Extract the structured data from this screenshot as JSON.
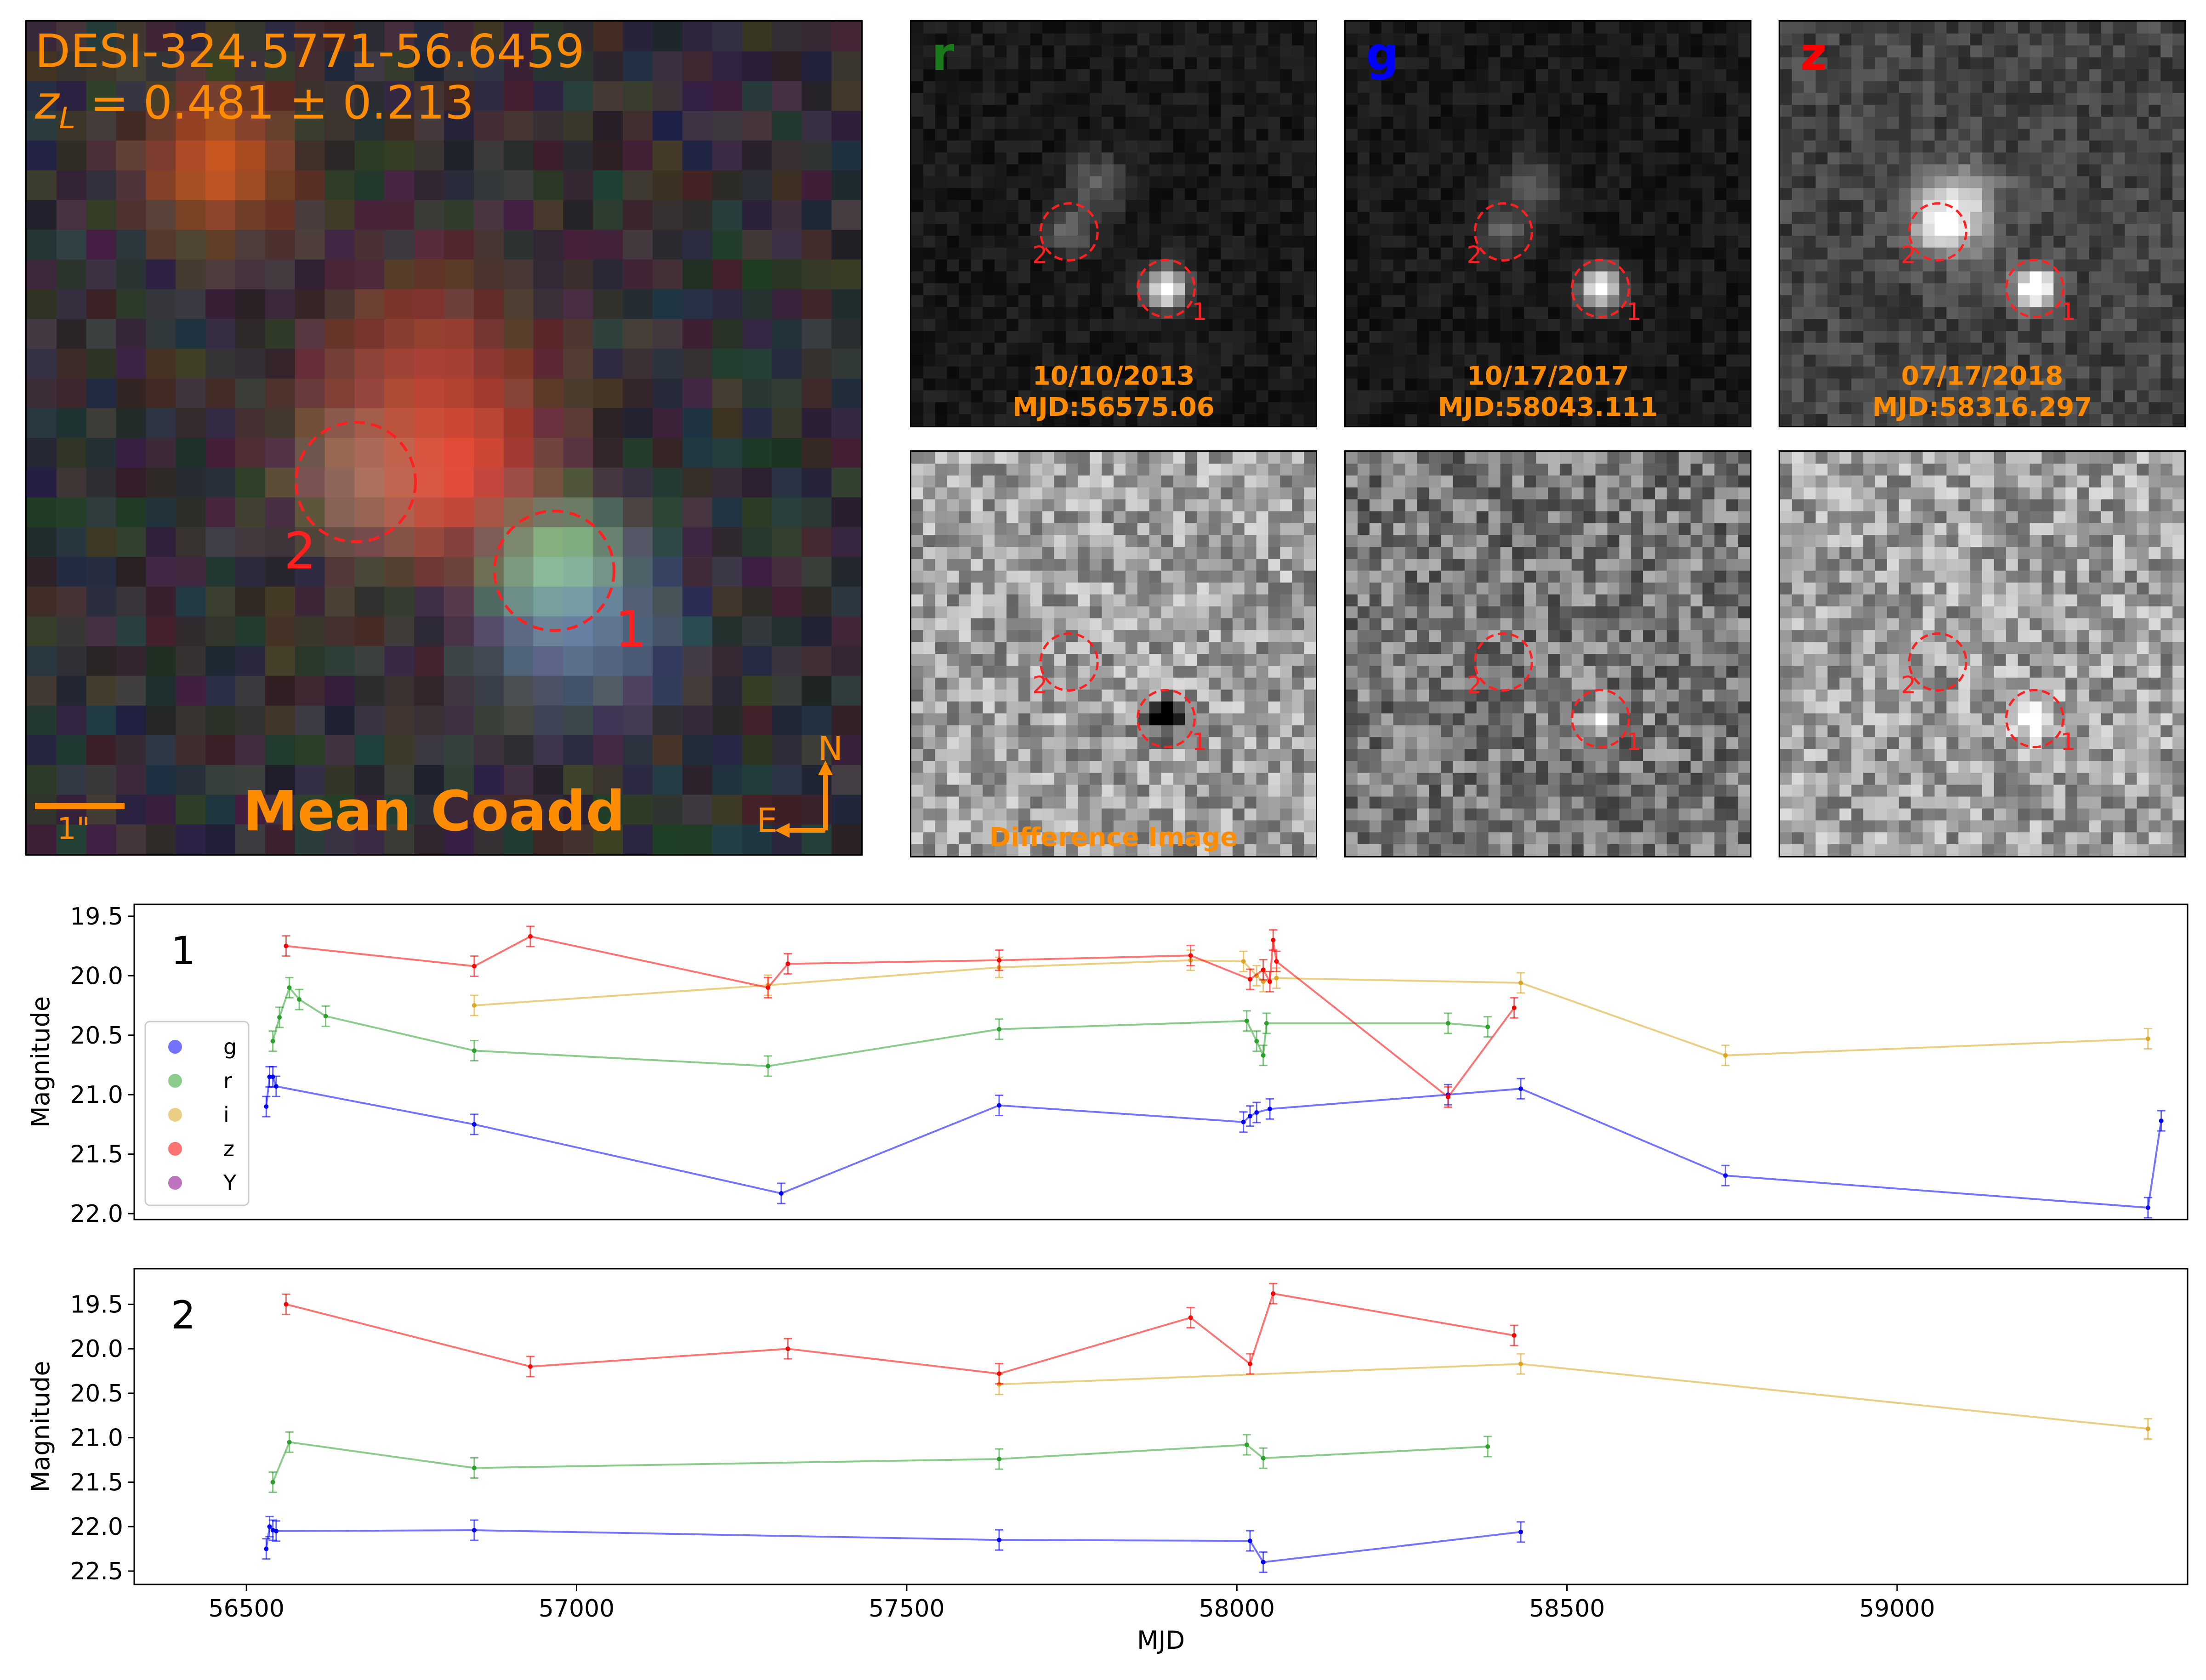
{
  "coadd": {
    "name": "DESI-324.5771-56.6459",
    "redshift": "z_L = 0.481 ± 0.213",
    "redshift_symbol": "z",
    "redshift_sub": "L",
    "redshift_value": " = 0.481 ± 0.213",
    "title": "Mean Coadd",
    "scale_label": "1\"",
    "compass_n": "N",
    "compass_e": "E",
    "source1_label": "1",
    "source2_label": "2",
    "text_color": "#ff8c00",
    "marker_color": "#ff2020"
  },
  "cutouts": [
    {
      "band": "r",
      "band_color": "#1a7a1a",
      "date": "10/10/2013",
      "mjd": "MJD:56575.06"
    },
    {
      "band": "g",
      "band_color": "#0000ff",
      "date": "10/17/2017",
      "mjd": "MJD:58043.111"
    },
    {
      "band": "z",
      "band_color": "#ff0000",
      "date": "07/17/2018",
      "mjd": "MJD:58316.297"
    }
  ],
  "difference": {
    "label": "Difference Image"
  },
  "chart_data": [
    {
      "type": "line",
      "panel_label": "1",
      "xlabel": "",
      "ylabel": "Magnitude",
      "xlim": [
        56330,
        59440
      ],
      "ylim": [
        22.05,
        19.4
      ],
      "yticks": [
        19.5,
        20.0,
        20.5,
        21.0,
        21.5,
        22.0
      ],
      "ytick_labels": [
        "19.5",
        "20.0",
        "20.5",
        "21.0",
        "21.5",
        "22.0"
      ],
      "legend": {
        "position": "lower-left",
        "entries": [
          "g",
          "r",
          "i",
          "z",
          "Y"
        ]
      },
      "series": [
        {
          "name": "g",
          "color": "#0000ff",
          "points": [
            [
              56530,
              21.1
            ],
            [
              56535,
              20.85
            ],
            [
              56540,
              20.85
            ],
            [
              56545,
              20.93
            ],
            [
              56845,
              21.25
            ],
            [
              57310,
              21.83
            ],
            [
              57640,
              21.09
            ],
            [
              58010,
              21.23
            ],
            [
              58020,
              21.18
            ],
            [
              58030,
              21.15
            ],
            [
              58050,
              21.12
            ],
            [
              58320,
              21.0
            ],
            [
              58430,
              20.95
            ],
            [
              58740,
              21.68
            ],
            [
              59380,
              21.95
            ],
            [
              59400,
              21.22
            ]
          ]
        },
        {
          "name": "r",
          "color": "#2ca02c",
          "points": [
            [
              56540,
              20.55
            ],
            [
              56550,
              20.35
            ],
            [
              56565,
              20.1
            ],
            [
              56580,
              20.2
            ],
            [
              56620,
              20.34
            ],
            [
              56845,
              20.63
            ],
            [
              57290,
              20.76
            ],
            [
              57640,
              20.45
            ],
            [
              58015,
              20.38
            ],
            [
              58030,
              20.55
            ],
            [
              58040,
              20.67
            ],
            [
              58045,
              20.4
            ],
            [
              58320,
              20.4
            ],
            [
              58380,
              20.43
            ]
          ]
        },
        {
          "name": "i",
          "color": "#daa520",
          "points": [
            [
              56845,
              20.25
            ],
            [
              57290,
              20.08
            ],
            [
              57640,
              19.93
            ],
            [
              57930,
              19.87
            ],
            [
              58010,
              19.88
            ],
            [
              58030,
              20.0
            ],
            [
              58040,
              20.05
            ],
            [
              58060,
              20.02
            ],
            [
              58430,
              20.06
            ],
            [
              58740,
              20.67
            ],
            [
              59380,
              20.53
            ]
          ]
        },
        {
          "name": "z",
          "color": "#ff0000",
          "points": [
            [
              56560,
              19.75
            ],
            [
              56845,
              19.92
            ],
            [
              56930,
              19.67
            ],
            [
              57290,
              20.1
            ],
            [
              57320,
              19.9
            ],
            [
              57640,
              19.87
            ],
            [
              57930,
              19.83
            ],
            [
              58020,
              20.03
            ],
            [
              58040,
              19.95
            ],
            [
              58050,
              20.05
            ],
            [
              58055,
              19.7
            ],
            [
              58060,
              19.88
            ],
            [
              58320,
              21.02
            ],
            [
              58420,
              20.27
            ]
          ]
        }
      ]
    },
    {
      "type": "line",
      "panel_label": "2",
      "xlabel": "MJD",
      "ylabel": "Magnitude",
      "xlim": [
        56330,
        59440
      ],
      "ylim": [
        22.65,
        19.1
      ],
      "xticks": [
        56500,
        57000,
        57500,
        58000,
        58500,
        59000
      ],
      "xtick_labels": [
        "56500",
        "57000",
        "57500",
        "58000",
        "58500",
        "59000"
      ],
      "yticks": [
        19.5,
        20.0,
        20.5,
        21.0,
        21.5,
        22.0,
        22.5
      ],
      "ytick_labels": [
        "19.5",
        "20.0",
        "20.5",
        "21.0",
        "21.5",
        "22.0",
        "22.5"
      ],
      "series": [
        {
          "name": "g",
          "color": "#0000ff",
          "points": [
            [
              56530,
              22.25
            ],
            [
              56535,
              22.0
            ],
            [
              56540,
              22.04
            ],
            [
              56545,
              22.05
            ],
            [
              56845,
              22.04
            ],
            [
              57640,
              22.15
            ],
            [
              58020,
              22.16
            ],
            [
              58040,
              22.4
            ],
            [
              58430,
              22.06
            ]
          ]
        },
        {
          "name": "r",
          "color": "#2ca02c",
          "points": [
            [
              56540,
              21.5
            ],
            [
              56565,
              21.05
            ],
            [
              56845,
              21.34
            ],
            [
              57640,
              21.24
            ],
            [
              58015,
              21.08
            ],
            [
              58040,
              21.23
            ],
            [
              58380,
              21.1
            ]
          ]
        },
        {
          "name": "i",
          "color": "#daa520",
          "points": [
            [
              57640,
              20.4
            ],
            [
              58430,
              20.17
            ],
            [
              59380,
              20.9
            ]
          ]
        },
        {
          "name": "z",
          "color": "#ff0000",
          "points": [
            [
              56560,
              19.5
            ],
            [
              56930,
              20.2
            ],
            [
              57320,
              20.0
            ],
            [
              57640,
              20.28
            ],
            [
              57930,
              19.65
            ],
            [
              58020,
              20.17
            ],
            [
              58055,
              19.38
            ],
            [
              58420,
              19.85
            ]
          ]
        }
      ]
    }
  ]
}
